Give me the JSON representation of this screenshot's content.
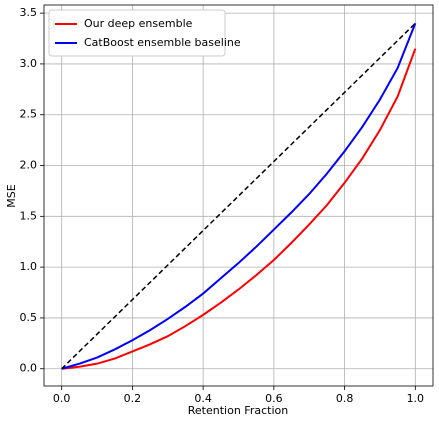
{
  "chart_data": {
    "type": "line",
    "x_label": "Retention Fraction",
    "y_label": "MSE",
    "x": [
      0,
      0.05,
      0.1,
      0.15,
      0.2,
      0.25,
      0.3,
      0.35,
      0.4,
      0.45,
      0.5,
      0.55,
      0.6,
      0.65,
      0.7,
      0.75,
      0.8,
      0.85,
      0.9,
      0.95,
      1.0
    ],
    "series": [
      {
        "name": "Our deep ensemble",
        "color": "#ff0000",
        "dash": false,
        "values": [
          0,
          0.02,
          0.05,
          0.1,
          0.17,
          0.24,
          0.32,
          0.42,
          0.53,
          0.65,
          0.78,
          0.92,
          1.07,
          1.24,
          1.42,
          1.61,
          1.83,
          2.07,
          2.35,
          2.68,
          3.15
        ]
      },
      {
        "name": "CatBoost ensemble baseline",
        "color": "#0000ff",
        "dash": false,
        "values": [
          0,
          0.05,
          0.11,
          0.19,
          0.28,
          0.38,
          0.49,
          0.61,
          0.74,
          0.89,
          1.04,
          1.2,
          1.37,
          1.54,
          1.72,
          1.92,
          2.14,
          2.38,
          2.65,
          2.96,
          3.4
        ]
      },
      {
        "color": "#000000",
        "dash": true,
        "x": [
          0,
          1
        ],
        "values": [
          0,
          3.4
        ]
      }
    ],
    "xlim": [
      -0.05,
      1.05
    ],
    "ylim": [
      -0.17,
      3.58
    ],
    "xticks": [
      {
        "value": 0,
        "label": "0.0"
      },
      {
        "value": 0.2,
        "label": "0.2"
      },
      {
        "value": 0.4,
        "label": "0.4"
      },
      {
        "value": 0.6,
        "label": "0.6"
      },
      {
        "value": 0.8,
        "label": "0.8"
      },
      {
        "value": 1,
        "label": "1.0"
      }
    ],
    "yticks": [
      {
        "value": 0,
        "label": "0.0"
      },
      {
        "value": 0.5,
        "label": "0.5"
      },
      {
        "value": 1,
        "label": "1.0"
      },
      {
        "value": 1.5,
        "label": "1.5"
      },
      {
        "value": 2,
        "label": "2.0"
      },
      {
        "value": 2.5,
        "label": "2.5"
      },
      {
        "value": 3,
        "label": "3.0"
      },
      {
        "value": 3.5,
        "label": "3.5"
      }
    ],
    "grid": true,
    "legend": "upper-left"
  }
}
